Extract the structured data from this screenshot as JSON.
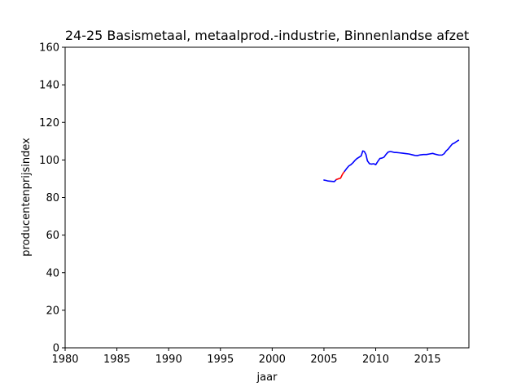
{
  "chart_data": {
    "type": "line",
    "title": "24-25 Basismetaal, metaalprod.-industrie, Binnenlandse afzet",
    "xlabel": "jaar",
    "ylabel": "producentenprijsindex",
    "xlim": [
      1980,
      2019
    ],
    "ylim": [
      0,
      160
    ],
    "xticks": [
      1980,
      1985,
      1990,
      1995,
      2000,
      2005,
      2010,
      2015
    ],
    "yticks": [
      0,
      20,
      40,
      60,
      80,
      100,
      120,
      140,
      160
    ],
    "grid": false,
    "series": [
      {
        "color": "#0000ff",
        "x": [
          2005.0,
          2005.2,
          2005.4,
          2005.6,
          2005.8,
          2006.0,
          2006.2
        ],
        "y": [
          89.3,
          89.1,
          88.8,
          88.7,
          88.6,
          88.5,
          89.6
        ]
      },
      {
        "color": "#ff0000",
        "x": [
          2006.2,
          2006.4,
          2006.6,
          2006.8,
          2007.0
        ],
        "y": [
          89.6,
          90.0,
          90.3,
          92.5,
          94.0
        ]
      },
      {
        "color": "#0000ff",
        "x": [
          2007.0,
          2007.2,
          2007.4,
          2007.6,
          2007.8,
          2008.0,
          2008.2,
          2008.4,
          2008.6,
          2008.75,
          2008.9,
          2009.05,
          2009.2,
          2009.4,
          2009.6,
          2009.8,
          2010.0,
          2010.2,
          2010.4,
          2010.6,
          2010.8,
          2011.0,
          2011.2,
          2011.4,
          2011.6,
          2011.8,
          2012.0,
          2012.3,
          2012.6,
          2012.9,
          2013.2,
          2013.5,
          2013.8,
          2014.0,
          2014.3,
          2014.6,
          2014.9,
          2015.2,
          2015.5,
          2015.8,
          2016.1,
          2016.4,
          2016.6,
          2016.8,
          2017.0,
          2017.2,
          2017.4,
          2017.6,
          2017.8,
          2018.0
        ],
        "y": [
          94.0,
          95.5,
          96.8,
          97.5,
          98.5,
          99.8,
          100.8,
          101.5,
          102.2,
          104.8,
          104.5,
          103.0,
          99.5,
          98.0,
          97.8,
          98.0,
          97.5,
          99.2,
          100.8,
          101.0,
          101.5,
          103.0,
          104.2,
          104.5,
          104.3,
          104.0,
          104.0,
          103.8,
          103.6,
          103.4,
          103.2,
          102.8,
          102.4,
          102.3,
          102.7,
          102.9,
          102.9,
          103.2,
          103.5,
          103.0,
          102.6,
          102.6,
          103.3,
          104.8,
          105.8,
          107.2,
          108.5,
          109.0,
          109.8,
          110.5
        ]
      }
    ]
  }
}
